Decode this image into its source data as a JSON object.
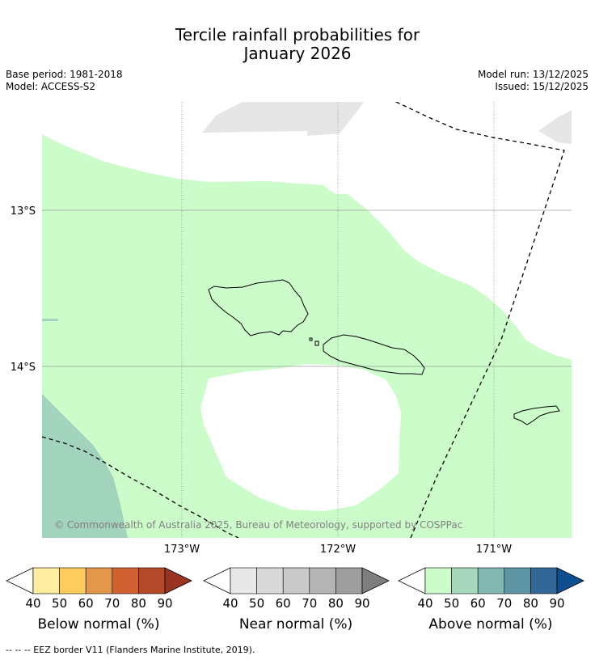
{
  "title_line1": "Tercile rainfall probabilities for",
  "title_line2": "January 2026",
  "meta": {
    "base_period": "Base period: 1981-2018",
    "model": "Model: ACCESS-S2",
    "model_run": "Model run: 13/12/2025",
    "issued": "Issued: 15/12/2025"
  },
  "map": {
    "lat_labels": [
      "13°S",
      "14°S"
    ],
    "lon_labels": [
      "173°W",
      "172°W",
      "171°W"
    ],
    "copyright": "© Commonwealth of Australia 2025, Bureau of Meteorology, supported by COSPPac",
    "colors": {
      "above_40_50": "#ccfcca",
      "above_50_60": "#a2d3bd",
      "near_40_50": "#e6e6e6",
      "no_signal": "#ffffff"
    }
  },
  "colorbars": [
    {
      "label": "Below normal (%)",
      "ticks": [
        "40",
        "50",
        "60",
        "70",
        "80",
        "90"
      ],
      "colors": [
        "#ffffff",
        "#ffeda0",
        "#fecc5c",
        "#e3974a",
        "#d26132",
        "#b24a2a",
        "#9a3322"
      ]
    },
    {
      "label": "Near normal (%)",
      "ticks": [
        "40",
        "50",
        "60",
        "70",
        "80",
        "90"
      ],
      "colors": [
        "#ffffff",
        "#e8e8e8",
        "#d9d9d9",
        "#c9c9c9",
        "#b4b4b4",
        "#9e9e9e",
        "#7e7e7e"
      ]
    },
    {
      "label": "Above normal (%)",
      "ticks": [
        "40",
        "50",
        "60",
        "70",
        "80",
        "90"
      ],
      "colors": [
        "#ffffff",
        "#ccfcca",
        "#a7d8bd",
        "#82b8b0",
        "#5e95a5",
        "#326798",
        "#0c4e8e"
      ]
    }
  ],
  "footer": "--  --  -- EEZ border V11 (Flanders Marine Institute, 2019)."
}
